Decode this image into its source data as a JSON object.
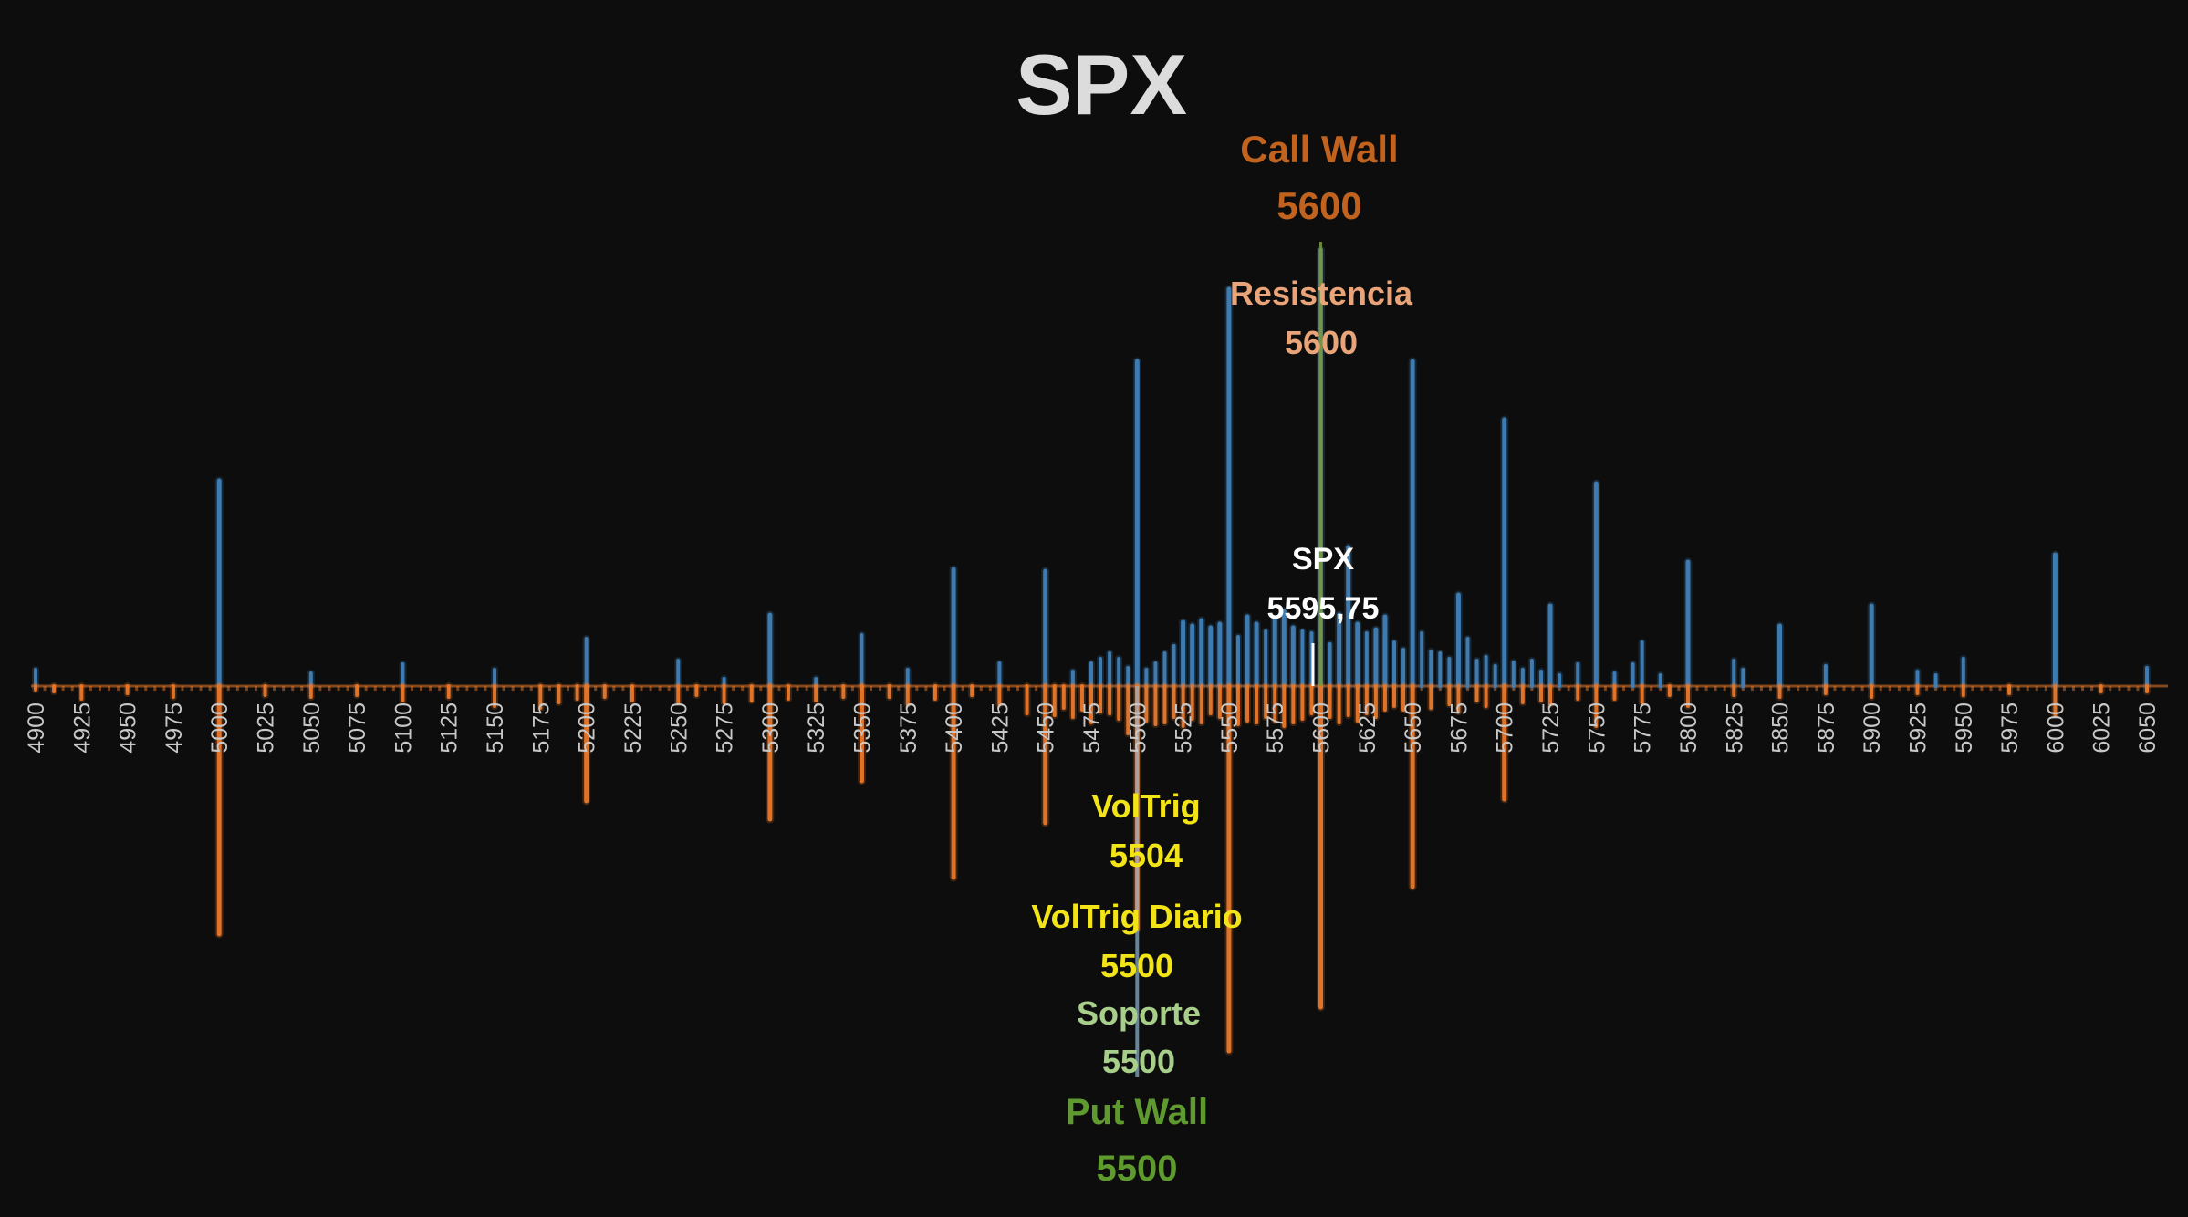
{
  "chart_data": {
    "type": "bar",
    "title": "SPX",
    "xlim": [
      4900,
      6060
    ],
    "strike_step": 5,
    "tick_labels": [
      "4900",
      "4925",
      "4950",
      "4975",
      "5000",
      "5025",
      "5050",
      "5075",
      "5100",
      "5125",
      "5150",
      "5175",
      "5200",
      "5225",
      "5250",
      "5275",
      "5300",
      "5325",
      "5350",
      "5375",
      "5400",
      "5425",
      "5450",
      "5475",
      "5500",
      "5525",
      "5550",
      "5575",
      "5600",
      "5625",
      "5650",
      "5675",
      "5700",
      "5725",
      "5750",
      "5775",
      "5800",
      "5825",
      "5850",
      "5875",
      "5900",
      "5925",
      "5950",
      "5975",
      "6000",
      "6025",
      "6050"
    ],
    "series": [
      {
        "color": "#3f7fb8",
        "direction": "up",
        "points": [
          [
            4900,
            18
          ],
          [
            5000,
            225
          ],
          [
            5050,
            14
          ],
          [
            5100,
            24
          ],
          [
            5150,
            18
          ],
          [
            5200,
            52
          ],
          [
            5250,
            28
          ],
          [
            5275,
            8
          ],
          [
            5300,
            78
          ],
          [
            5325,
            8
          ],
          [
            5350,
            56
          ],
          [
            5375,
            18
          ],
          [
            5400,
            128
          ],
          [
            5425,
            25
          ],
          [
            5450,
            126
          ],
          [
            5465,
            16
          ],
          [
            5475,
            25
          ],
          [
            5480,
            30
          ],
          [
            5485,
            36
          ],
          [
            5490,
            30
          ],
          [
            5495,
            20
          ],
          [
            5500,
            356
          ],
          [
            5505,
            18
          ],
          [
            5510,
            25
          ],
          [
            5515,
            36
          ],
          [
            5520,
            44
          ],
          [
            5525,
            70
          ],
          [
            5530,
            66
          ],
          [
            5535,
            72
          ],
          [
            5540,
            64
          ],
          [
            5545,
            68
          ],
          [
            5550,
            435
          ],
          [
            5555,
            54
          ],
          [
            5560,
            76
          ],
          [
            5565,
            68
          ],
          [
            5570,
            60
          ],
          [
            5575,
            74
          ],
          [
            5580,
            82
          ],
          [
            5585,
            64
          ],
          [
            5590,
            60
          ],
          [
            5595,
            58
          ],
          [
            5600,
            478
          ],
          [
            5605,
            46
          ],
          [
            5610,
            78
          ],
          [
            5615,
            152
          ],
          [
            5620,
            68
          ],
          [
            5625,
            58
          ],
          [
            5630,
            62
          ],
          [
            5635,
            76
          ],
          [
            5640,
            48
          ],
          [
            5645,
            40
          ],
          [
            5650,
            356
          ],
          [
            5655,
            58
          ],
          [
            5660,
            38
          ],
          [
            5665,
            36
          ],
          [
            5670,
            30
          ],
          [
            5675,
            100
          ],
          [
            5680,
            52
          ],
          [
            5685,
            28
          ],
          [
            5690,
            32
          ],
          [
            5695,
            22
          ],
          [
            5700,
            292
          ],
          [
            5705,
            26
          ],
          [
            5710,
            18
          ],
          [
            5715,
            28
          ],
          [
            5720,
            16
          ],
          [
            5725,
            88
          ],
          [
            5730,
            12
          ],
          [
            5740,
            24
          ],
          [
            5750,
            222
          ],
          [
            5760,
            14
          ],
          [
            5770,
            24
          ],
          [
            5775,
            48
          ],
          [
            5785,
            12
          ],
          [
            5800,
            136
          ],
          [
            5825,
            28
          ],
          [
            5830,
            18
          ],
          [
            5850,
            66
          ],
          [
            5875,
            22
          ],
          [
            5900,
            88
          ],
          [
            5925,
            16
          ],
          [
            5935,
            12
          ],
          [
            5950,
            30
          ],
          [
            6000,
            144
          ],
          [
            6050,
            20
          ]
        ]
      },
      {
        "color": "#e8782a",
        "direction": "down",
        "points": [
          [
            4900,
            4
          ],
          [
            4910,
            6
          ],
          [
            4925,
            14
          ],
          [
            4950,
            8
          ],
          [
            4975,
            12
          ],
          [
            5000,
            272
          ],
          [
            5025,
            10
          ],
          [
            5050,
            12
          ],
          [
            5075,
            10
          ],
          [
            5100,
            16
          ],
          [
            5125,
            12
          ],
          [
            5150,
            22
          ],
          [
            5175,
            24
          ],
          [
            5185,
            18
          ],
          [
            5195,
            14
          ],
          [
            5200,
            126
          ],
          [
            5210,
            12
          ],
          [
            5225,
            16
          ],
          [
            5250,
            18
          ],
          [
            5260,
            10
          ],
          [
            5275,
            18
          ],
          [
            5290,
            16
          ],
          [
            5300,
            146
          ],
          [
            5310,
            14
          ],
          [
            5325,
            16
          ],
          [
            5340,
            12
          ],
          [
            5350,
            104
          ],
          [
            5365,
            12
          ],
          [
            5375,
            20
          ],
          [
            5390,
            14
          ],
          [
            5400,
            210
          ],
          [
            5410,
            10
          ],
          [
            5425,
            20
          ],
          [
            5440,
            30
          ],
          [
            5450,
            150
          ],
          [
            5455,
            32
          ],
          [
            5460,
            24
          ],
          [
            5465,
            34
          ],
          [
            5470,
            26
          ],
          [
            5475,
            40
          ],
          [
            5480,
            28
          ],
          [
            5485,
            30
          ],
          [
            5490,
            36
          ],
          [
            5495,
            52
          ],
          [
            5500,
            266
          ],
          [
            5505,
            38
          ],
          [
            5510,
            42
          ],
          [
            5515,
            40
          ],
          [
            5520,
            34
          ],
          [
            5525,
            44
          ],
          [
            5530,
            36
          ],
          [
            5535,
            40
          ],
          [
            5540,
            30
          ],
          [
            5545,
            34
          ],
          [
            5550,
            400
          ],
          [
            5555,
            42
          ],
          [
            5560,
            38
          ],
          [
            5565,
            40
          ],
          [
            5570,
            34
          ],
          [
            5575,
            38
          ],
          [
            5580,
            44
          ],
          [
            5585,
            40
          ],
          [
            5590,
            36
          ],
          [
            5595,
            30
          ],
          [
            5600,
            352
          ],
          [
            5605,
            34
          ],
          [
            5610,
            40
          ],
          [
            5615,
            32
          ],
          [
            5620,
            38
          ],
          [
            5625,
            30
          ],
          [
            5630,
            34
          ],
          [
            5635,
            26
          ],
          [
            5640,
            22
          ],
          [
            5645,
            26
          ],
          [
            5650,
            220
          ],
          [
            5660,
            24
          ],
          [
            5670,
            20
          ],
          [
            5675,
            28
          ],
          [
            5685,
            16
          ],
          [
            5690,
            22
          ],
          [
            5700,
            124
          ],
          [
            5710,
            18
          ],
          [
            5720,
            16
          ],
          [
            5725,
            20
          ],
          [
            5740,
            14
          ],
          [
            5750,
            44
          ],
          [
            5760,
            14
          ],
          [
            5775,
            18
          ],
          [
            5790,
            10
          ],
          [
            5800,
            22
          ],
          [
            5825,
            10
          ],
          [
            5850,
            12
          ],
          [
            5875,
            8
          ],
          [
            5900,
            12
          ],
          [
            5925,
            8
          ],
          [
            5950,
            10
          ],
          [
            5975,
            8
          ],
          [
            6000,
            32
          ],
          [
            6025,
            6
          ],
          [
            6050,
            6
          ]
        ]
      }
    ],
    "levels": [
      {
        "key": "call_wall",
        "label": "Call Wall",
        "value": "5600",
        "strike": 5600,
        "color": "#c1621f"
      },
      {
        "key": "resistencia",
        "label": "Resistencia",
        "value": "5600",
        "strike": 5600,
        "color": "#e9a47a"
      },
      {
        "key": "spx",
        "label": "SPX",
        "value": "5595,75",
        "strike": 5595.75,
        "color": "#ffffff"
      },
      {
        "key": "voltrig",
        "label": "VolTrig",
        "value": "5504",
        "strike": 5504,
        "color": "#f3e418"
      },
      {
        "key": "voltrig_diario",
        "label": "VolTrig Diario",
        "value": "5500",
        "strike": 5500,
        "color": "#f3e418"
      },
      {
        "key": "soporte",
        "label": "Soporte",
        "value": "5500",
        "strike": 5500,
        "color": "#a8cf8a"
      },
      {
        "key": "put_wall",
        "label": "Put Wall",
        "value": "5500",
        "strike": 5500,
        "color": "#5f9a2e"
      }
    ]
  }
}
